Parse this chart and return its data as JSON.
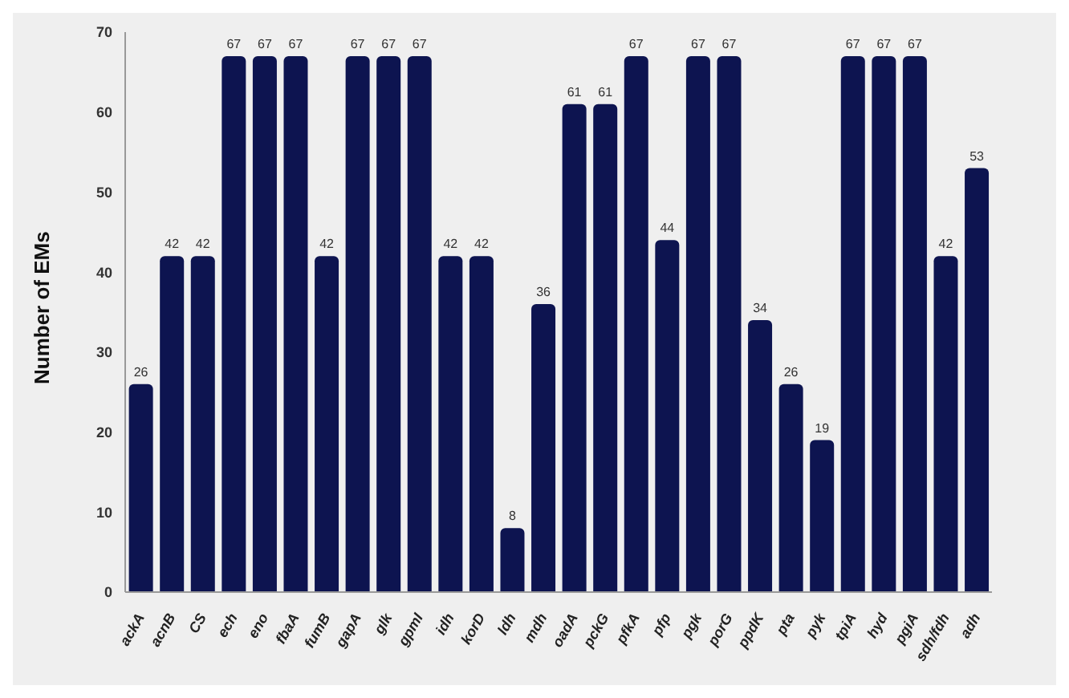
{
  "chart_data": {
    "type": "bar",
    "ylabel": "Number of EMs",
    "categories": [
      "ackA",
      "acnB",
      "CS",
      "ech",
      "eno",
      "fbaA",
      "fumB",
      "gapA",
      "glk",
      "gpmI",
      "idh",
      "korD",
      "ldh",
      "mdh",
      "oadA",
      "pckG",
      "pfkA",
      "pfp",
      "pgk",
      "porG",
      "ppdK",
      "pta",
      "pyk",
      "tpiA",
      "hyd",
      "pgiA",
      "sdh/fdh",
      "adh"
    ],
    "values": [
      26,
      42,
      42,
      67,
      67,
      67,
      42,
      67,
      67,
      67,
      42,
      42,
      8,
      36,
      61,
      61,
      67,
      44,
      67,
      67,
      34,
      26,
      19,
      67,
      67,
      67,
      42,
      53
    ],
    "color": "#0d1450",
    "ylim": [
      0,
      70
    ],
    "yticks": [
      0,
      10,
      20,
      30,
      40,
      50,
      60,
      70
    ],
    "grid": false,
    "legend": false,
    "data_labels": true
  }
}
